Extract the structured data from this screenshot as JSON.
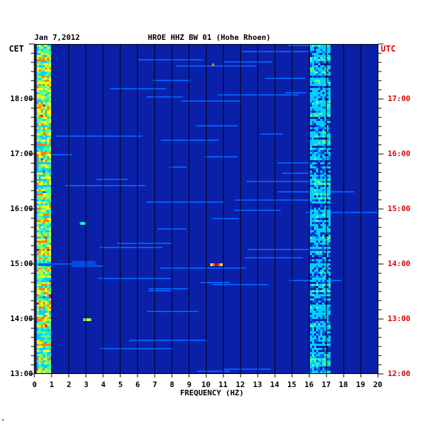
{
  "header": {
    "date": "Jan 7,2012",
    "title": "HROE HHZ BW 01 (Hohe Rhoen)"
  },
  "chart_data": {
    "type": "heatmap",
    "title": "HROE HHZ BW 01 (Hohe Rhoen)",
    "date": "Jan 7,2012",
    "xlabel": "FREQUENCY (HZ)",
    "xlim": [
      0,
      20
    ],
    "x_ticks": [
      "0",
      "1",
      "2",
      "3",
      "4",
      "5",
      "6",
      "7",
      "8",
      "9",
      "10",
      "11",
      "12",
      "13",
      "14",
      "15",
      "16",
      "17",
      "18",
      "19",
      "20"
    ],
    "left_axis": {
      "label": "CET",
      "ticks": [
        "13:00",
        "14:00",
        "15:00",
        "16:00",
        "17:00",
        "18:00"
      ]
    },
    "right_axis": {
      "label": "UTC",
      "ticks": [
        "12:00",
        "13:00",
        "14:00",
        "15:00",
        "16:00",
        "17:00"
      ]
    },
    "time_range_cet": [
      "13:00",
      "19:00"
    ],
    "colormap": [
      "#0b20a8",
      "#0060ff",
      "#00d0ff",
      "#50ff90",
      "#ffff00",
      "#ff8000",
      "#e00000"
    ],
    "bands": [
      {
        "name": "low-frequency noise",
        "f_min": 0.1,
        "f_max": 0.9,
        "intensity": 0.85
      },
      {
        "name": "16-17 Hz band",
        "f_min": 16.0,
        "f_max": 17.2,
        "intensity": 0.45
      }
    ],
    "events": [
      {
        "time_cet": "15:00",
        "f_min": 10.2,
        "f_max": 10.9,
        "intensity": 1.0
      },
      {
        "time_cet": "15:00",
        "f_min": 0.2,
        "f_max": 1.0,
        "intensity": 0.2
      },
      {
        "time_cet": "14:00",
        "f_min": 2.8,
        "f_max": 3.3,
        "intensity": 0.7
      },
      {
        "time_cet": "15:45",
        "f_min": 2.6,
        "f_max": 3.0,
        "intensity": 0.55
      },
      {
        "time_cet": "18:38",
        "f_min": 10.3,
        "f_max": 10.4,
        "intensity": 0.8
      }
    ]
  },
  "colors": {
    "background": "#0b20a8",
    "utc_label": "#dd0000",
    "grid": "#000000"
  }
}
